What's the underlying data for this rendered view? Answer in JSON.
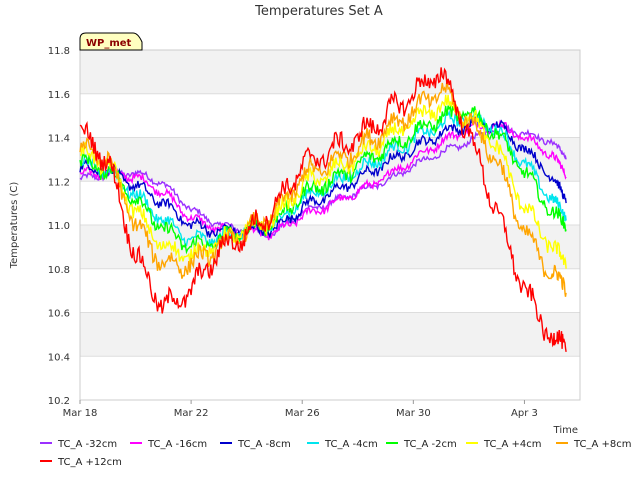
{
  "chart_data": {
    "type": "line",
    "title": "Temperatures Set A",
    "xlabel": "Time",
    "ylabel": "Temperatures (C)",
    "badge": "WP_met",
    "x_range": [
      "2024-03-18",
      "2024-04-05"
    ],
    "xticks": [
      {
        "date": "2024-03-18",
        "label": "Mar 18"
      },
      {
        "date": "2024-03-22",
        "label": "Mar 22"
      },
      {
        "date": "2024-03-26",
        "label": "Mar 26"
      },
      {
        "date": "2024-03-30",
        "label": "Mar 30"
      },
      {
        "date": "2024-04-03",
        "label": "Apr 3"
      }
    ],
    "ylim": [
      10.2,
      11.8
    ],
    "yticks": [
      "10.2",
      "10.4",
      "10.6",
      "10.8",
      "11.0",
      "11.2",
      "11.4",
      "11.6",
      "11.8"
    ],
    "banded_background": true,
    "legend_position": "bottom",
    "x": [
      "2024-03-18",
      "2024-03-19",
      "2024-03-20",
      "2024-03-21",
      "2024-03-22",
      "2024-03-23",
      "2024-03-24",
      "2024-03-25",
      "2024-03-26",
      "2024-03-27",
      "2024-03-28",
      "2024-03-29",
      "2024-03-30",
      "2024-03-31",
      "2024-04-01",
      "2024-04-02",
      "2024-04-03",
      "2024-04-04",
      "2024-04-04T12:00"
    ],
    "series": [
      {
        "name": "TC_A -32cm",
        "color": "#9b30ff",
        "values": [
          11.21,
          11.23,
          11.24,
          11.19,
          11.07,
          11.0,
          10.98,
          10.96,
          11.06,
          11.1,
          11.15,
          11.2,
          11.27,
          11.33,
          11.38,
          11.45,
          11.42,
          11.38,
          11.3
        ]
      },
      {
        "name": "TC_A -16cm",
        "color": "#ff00ff",
        "values": [
          11.23,
          11.24,
          11.22,
          11.15,
          11.03,
          10.98,
          10.97,
          10.96,
          11.04,
          11.09,
          11.15,
          11.22,
          11.3,
          11.38,
          11.44,
          11.46,
          11.4,
          11.32,
          11.22
        ]
      },
      {
        "name": "TC_A -8cm",
        "color": "#0000cc",
        "values": [
          11.26,
          11.25,
          11.18,
          11.1,
          11.0,
          10.97,
          10.98,
          10.98,
          11.08,
          11.14,
          11.21,
          11.28,
          11.35,
          11.42,
          11.46,
          11.46,
          11.35,
          11.22,
          11.1
        ]
      },
      {
        "name": "TC_A -4cm",
        "color": "#00e5ee",
        "values": [
          11.28,
          11.25,
          11.14,
          11.02,
          10.93,
          10.94,
          10.98,
          11.0,
          11.12,
          11.18,
          11.25,
          11.32,
          11.39,
          11.46,
          11.5,
          11.44,
          11.28,
          11.12,
          11.02
        ]
      },
      {
        "name": "TC_A -2cm",
        "color": "#00ff00",
        "values": [
          11.29,
          11.25,
          11.12,
          10.98,
          10.9,
          10.93,
          10.98,
          11.01,
          11.14,
          11.2,
          11.27,
          11.35,
          11.42,
          11.49,
          11.52,
          11.42,
          11.24,
          11.06,
          10.98
        ]
      },
      {
        "name": "TC_A +4cm",
        "color": "#ffff00",
        "values": [
          11.33,
          11.28,
          11.06,
          10.9,
          10.86,
          10.92,
          10.98,
          11.03,
          11.18,
          11.24,
          11.31,
          11.39,
          11.47,
          11.55,
          11.5,
          11.36,
          11.08,
          10.9,
          10.8
        ]
      },
      {
        "name": "TC_A +8cm",
        "color": "#ffa500",
        "values": [
          11.36,
          11.3,
          11.0,
          10.82,
          10.82,
          10.9,
          10.97,
          11.05,
          11.22,
          11.28,
          11.35,
          11.44,
          11.52,
          11.62,
          11.48,
          11.3,
          10.96,
          10.78,
          10.69
        ]
      },
      {
        "name": "TC_A +12cm",
        "color": "#ff0000",
        "values": [
          11.42,
          11.3,
          10.86,
          10.62,
          10.7,
          10.88,
          10.96,
          11.08,
          11.27,
          11.34,
          11.4,
          11.5,
          11.6,
          11.7,
          11.42,
          11.06,
          10.7,
          10.48,
          10.42
        ]
      }
    ]
  }
}
